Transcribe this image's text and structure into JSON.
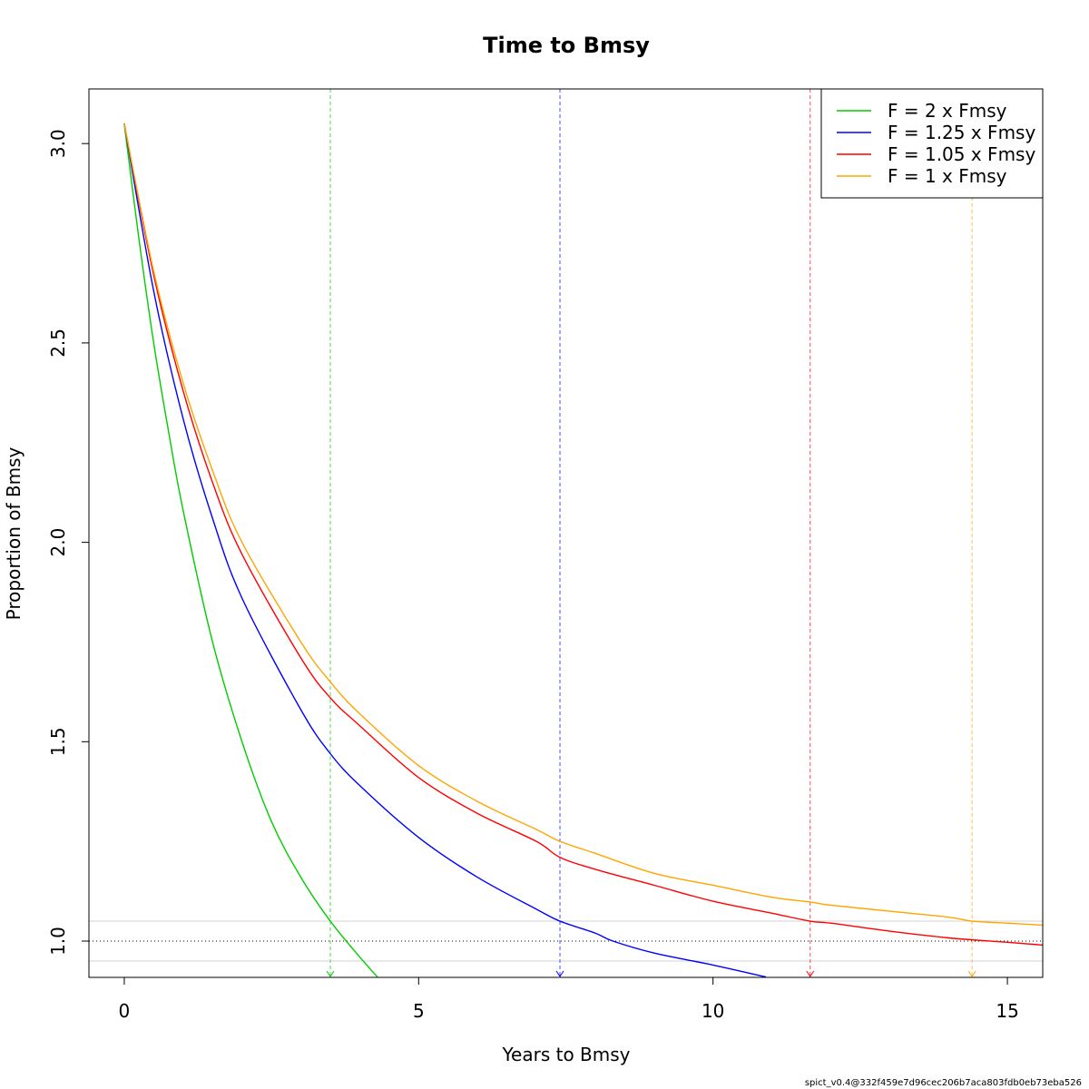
{
  "chart_data": {
    "type": "line",
    "title": "Time to Bmsy",
    "xlabel": "Years to Bmsy",
    "ylabel": "Proportion of Bmsy",
    "xlim": [
      -0.6,
      15.6
    ],
    "ylim": [
      0.909,
      3.137
    ],
    "x_ticks": [
      "0",
      "5",
      "10",
      "15"
    ],
    "y_ticks": [
      "1.0",
      "1.5",
      "2.0",
      "2.5",
      "3.0"
    ],
    "grid": false,
    "legend_position": "top-right",
    "reference_lines": {
      "target": 1.0,
      "band": [
        0.95,
        1.05
      ]
    },
    "series": [
      {
        "name": "F = 2 x Fmsy",
        "color": "#00CC00",
        "time_to_bmsy": 3.5,
        "x": [
          0,
          0.25,
          0.5,
          0.75,
          1.0,
          1.5,
          2.0,
          2.5,
          3.0,
          3.5,
          4.0,
          4.3
        ],
        "y": [
          3.05,
          2.76,
          2.5,
          2.28,
          2.08,
          1.75,
          1.5,
          1.3,
          1.16,
          1.05,
          0.96,
          0.91
        ]
      },
      {
        "name": "F = 1.25 x Fmsy",
        "color": "#0000FF",
        "time_to_bmsy": 7.4,
        "x": [
          0,
          0.5,
          1.0,
          1.5,
          2.0,
          3.0,
          3.5,
          4.0,
          5.0,
          6.0,
          7.0,
          7.4,
          8.0,
          8.3,
          9.0,
          10.0,
          10.9
        ],
        "y": [
          3.05,
          2.63,
          2.31,
          2.06,
          1.86,
          1.58,
          1.47,
          1.39,
          1.26,
          1.16,
          1.08,
          1.05,
          1.02,
          1.0,
          0.97,
          0.94,
          0.91
        ]
      },
      {
        "name": "F = 1.05 x Fmsy",
        "color": "#FF0000",
        "time_to_bmsy": 11.65,
        "x": [
          0,
          0.5,
          1.0,
          1.5,
          2.0,
          3.0,
          3.5,
          4.0,
          5.0,
          6.0,
          7.0,
          7.4,
          8.0,
          9.0,
          10.0,
          11.0,
          11.65,
          12.0,
          13.0,
          14.0,
          15.0,
          15.6
        ],
        "y": [
          3.05,
          2.67,
          2.38,
          2.15,
          1.97,
          1.71,
          1.61,
          1.54,
          1.41,
          1.32,
          1.25,
          1.21,
          1.18,
          1.14,
          1.1,
          1.07,
          1.05,
          1.045,
          1.025,
          1.008,
          0.997,
          0.99
        ]
      },
      {
        "name": "F = 1 x Fmsy",
        "color": "#FFA500",
        "time_to_bmsy": 14.4,
        "x": [
          0,
          0.5,
          1.0,
          1.5,
          2.0,
          3.0,
          3.5,
          4.0,
          5.0,
          6.0,
          7.0,
          7.4,
          8.0,
          9.0,
          10.0,
          11.0,
          11.65,
          12.0,
          13.0,
          14.0,
          14.4,
          15.0,
          15.6
        ],
        "y": [
          3.05,
          2.68,
          2.4,
          2.18,
          2.0,
          1.75,
          1.65,
          1.57,
          1.44,
          1.35,
          1.28,
          1.25,
          1.22,
          1.17,
          1.14,
          1.11,
          1.098,
          1.09,
          1.075,
          1.06,
          1.05,
          1.045,
          1.04
        ]
      }
    ]
  },
  "footer": "spict_v0.4@332f459e7d96cec206b7aca803fdb0eb73eba526"
}
